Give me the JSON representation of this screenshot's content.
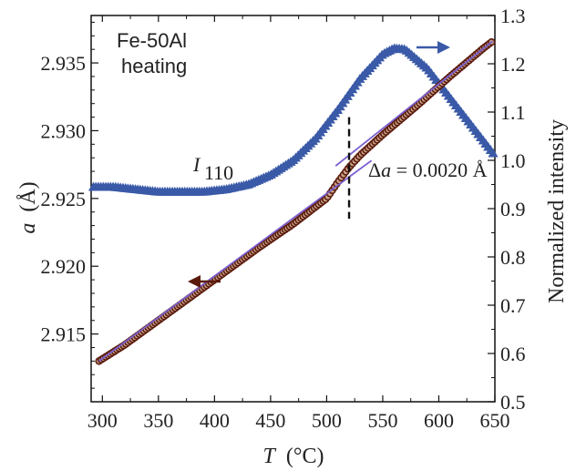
{
  "chart_data": {
    "type": "scatter",
    "title": "",
    "xlabel_var": "T",
    "xlabel_unit": "(°C)",
    "ylabel_left_var": "a",
    "ylabel_left_unit": "(Å)",
    "ylabel_right": "Normalized intensity",
    "xlim": [
      290,
      650
    ],
    "ylim_left": [
      2.91,
      2.9385
    ],
    "ylim_right": [
      0.5,
      1.3
    ],
    "x_ticks": [
      300,
      350,
      400,
      450,
      500,
      550,
      600,
      650
    ],
    "x_tick_labels": [
      "300",
      "350",
      "400",
      "450",
      "500",
      "550",
      "600",
      "650"
    ],
    "y_left_ticks": [
      2.915,
      2.92,
      2.925,
      2.93,
      2.935
    ],
    "y_left_tick_labels": [
      "2.915",
      "2.920",
      "2.925",
      "2.930",
      "2.935"
    ],
    "y_right_ticks": [
      0.5,
      0.6,
      0.7,
      0.8,
      0.9,
      1.0,
      1.1,
      1.2,
      1.3
    ],
    "y_right_tick_labels": [
      "0.5",
      "0.6",
      "0.7",
      "0.8",
      "0.9",
      "1.0",
      "1.1",
      "1.2",
      "1.3"
    ],
    "grid": false,
    "series": [
      {
        "axis": "left",
        "marker": "circle",
        "color": "#5a1a0c",
        "x": [
          297,
          320,
          350,
          380,
          410,
          440,
          470,
          500,
          510,
          520,
          530,
          550,
          580,
          610,
          640,
          648
        ],
        "y": [
          2.913,
          2.9142,
          2.916,
          2.9178,
          2.9196,
          2.9214,
          2.9231,
          2.925,
          2.9262,
          2.9273,
          2.9282,
          2.9297,
          2.9318,
          2.934,
          2.9361,
          2.9366
        ]
      },
      {
        "axis": "right",
        "marker": "triangle",
        "color": "#3a5aa8",
        "x": [
          292,
          310,
          330,
          350,
          370,
          390,
          410,
          430,
          450,
          470,
          490,
          510,
          530,
          550,
          560,
          570,
          590,
          610,
          630,
          650
        ],
        "y": [
          0.945,
          0.945,
          0.94,
          0.935,
          0.935,
          0.935,
          0.94,
          0.95,
          0.97,
          1.0,
          1.045,
          1.105,
          1.17,
          1.22,
          1.232,
          1.23,
          1.19,
          1.13,
          1.07,
          1.01
        ]
      }
    ],
    "fit_lines": [
      {
        "color": "#7a5fcf",
        "x": [
          297,
          540
        ],
        "y": [
          2.913,
          2.9278
        ]
      },
      {
        "color": "#7a5fcf",
        "x": [
          508,
          648
        ],
        "y": [
          2.9274,
          2.9366
        ]
      }
    ],
    "transition_marker": {
      "x": 520,
      "y_range": [
        2.9235,
        2.931
      ],
      "style": "dashed",
      "color": "#111111"
    },
    "annotations": {
      "sample": "Fe-50Al",
      "condition": "heating",
      "intensity_label_main": "I",
      "intensity_label_sub": "110",
      "delta_prefix": "Δ",
      "delta_var": "a",
      "delta_value": " = 0.0020 Å"
    },
    "arrows": [
      {
        "direction": "left",
        "axis_side": "left",
        "color": "#5a1a0c"
      },
      {
        "direction": "right",
        "axis_side": "right",
        "color": "#3a5aa8"
      }
    ]
  }
}
